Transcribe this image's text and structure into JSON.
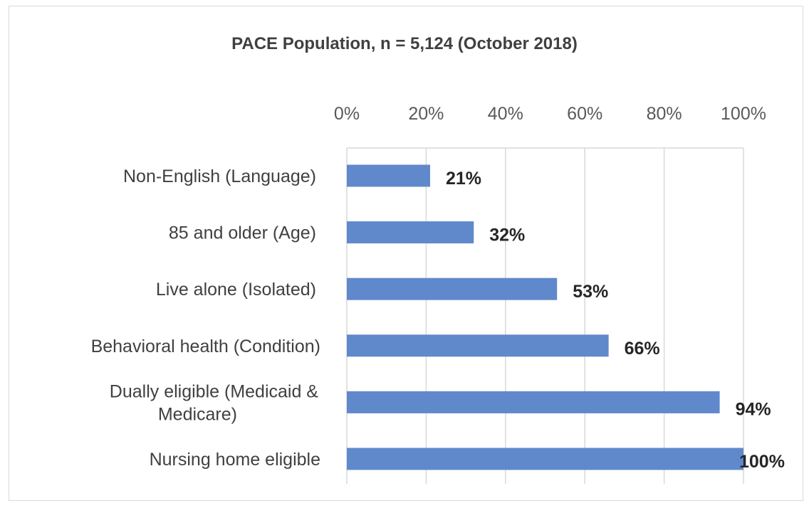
{
  "chart_data": {
    "type": "bar",
    "orientation": "horizontal",
    "title": "PACE Population, n = 5,124 (October 2018)",
    "categories": [
      "Non-English (Language)",
      "85 and older (Age)",
      "Live alone (Isolated)",
      "Behavioral health (Condition)",
      "Dually eligible (Medicaid & Medicare)",
      "Nursing home eligible"
    ],
    "category_lines": [
      [
        "Non-English (Language)"
      ],
      [
        "85 and older (Age)"
      ],
      [
        "Live alone (Isolated)"
      ],
      [
        "Behavioral health (Condition)"
      ],
      [
        "Dually eligible (Medicaid &",
        "Medicare)"
      ],
      [
        "Nursing home eligible"
      ]
    ],
    "values": [
      21,
      32,
      53,
      66,
      94,
      100
    ],
    "data_labels": [
      "21%",
      "32%",
      "53%",
      "66%",
      "94%",
      "100%"
    ],
    "x_ticks": [
      0,
      20,
      40,
      60,
      80,
      100
    ],
    "x_tick_labels": [
      "0%",
      "20%",
      "40%",
      "60%",
      "80%",
      "100%"
    ],
    "xlim": [
      0,
      100
    ],
    "x_axis_position": "top",
    "grid": true,
    "bar_color": "#6089cc",
    "grid_color": "#d9d9d9"
  }
}
